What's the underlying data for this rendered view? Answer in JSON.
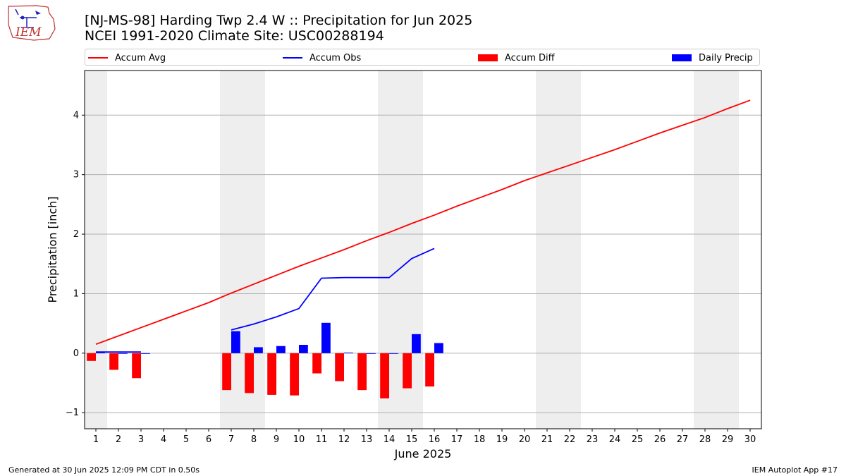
{
  "header": {
    "title_line1": "[NJ-MS-98] Harding Twp 2.4 W :: Precipitation for Jun 2025",
    "title_line2": "NCEI 1991-2020 Climate Site: USC00288194",
    "logo_text": "IEM"
  },
  "footer": {
    "generated": "Generated at 30 Jun 2025 12:09 PM CDT in 0.50s",
    "app": "IEM Autoplot App #17"
  },
  "chart_data": {
    "type": "bar",
    "xlabel": "June 2025",
    "ylabel": "Precipitation [inch]",
    "xlim": [
      0.5,
      30.5
    ],
    "ylim": [
      -1.27,
      4.75
    ],
    "yticks": [
      -1,
      0,
      1,
      2,
      3,
      4
    ],
    "grid": "y",
    "legend_position": "top",
    "weekend_shading": [
      [
        0.5,
        1.5
      ],
      [
        6.5,
        8.5
      ],
      [
        13.5,
        15.5
      ],
      [
        20.5,
        22.5
      ],
      [
        27.5,
        29.5
      ]
    ],
    "days": [
      1,
      2,
      3,
      4,
      5,
      6,
      7,
      8,
      9,
      10,
      11,
      12,
      13,
      14,
      15,
      16,
      17,
      18,
      19,
      20,
      21,
      22,
      23,
      24,
      25,
      26,
      27,
      28,
      29,
      30
    ],
    "series": [
      {
        "name": "Accum Avg",
        "kind": "line",
        "color": "#ff0000",
        "x": [
          1,
          2,
          3,
          4,
          5,
          6,
          7,
          8,
          9,
          10,
          11,
          12,
          13,
          14,
          15,
          16,
          17,
          18,
          19,
          20,
          21,
          22,
          23,
          24,
          25,
          26,
          27,
          28,
          29,
          30
        ],
        "values": [
          0.15,
          0.29,
          0.43,
          0.57,
          0.71,
          0.85,
          1.01,
          1.16,
          1.31,
          1.46,
          1.6,
          1.74,
          1.89,
          2.03,
          2.18,
          2.32,
          2.47,
          2.61,
          2.75,
          2.9,
          3.03,
          3.16,
          3.29,
          3.42,
          3.56,
          3.7,
          3.83,
          3.96,
          4.11,
          4.25
        ]
      },
      {
        "name": "Accum Obs",
        "kind": "line",
        "color": "#0000ff",
        "segments": [
          {
            "x": [
              1,
              2,
              3
            ],
            "values": [
              0.02,
              0.02,
              0.02
            ]
          },
          {
            "x": [
              7,
              8,
              9,
              10,
              11,
              12,
              13,
              14,
              15,
              16
            ],
            "values": [
              0.39,
              0.49,
              0.61,
              0.75,
              1.26,
              1.27,
              1.27,
              1.27,
              1.59,
              1.76
            ]
          }
        ]
      },
      {
        "name": "Accum Diff",
        "kind": "bar",
        "color": "#ff0000",
        "x": [
          1,
          2,
          3,
          7,
          8,
          9,
          10,
          11,
          12,
          13,
          14,
          15,
          16
        ],
        "values": [
          -0.13,
          -0.28,
          -0.42,
          -0.62,
          -0.67,
          -0.7,
          -0.71,
          -0.34,
          -0.47,
          -0.62,
          -0.76,
          -0.59,
          -0.56
        ]
      },
      {
        "name": "Daily Precip",
        "kind": "bar",
        "color": "#0000ff",
        "x": [
          1,
          2,
          3,
          7,
          8,
          9,
          10,
          11,
          12,
          13,
          14,
          15,
          16
        ],
        "values": [
          0.02,
          0,
          0,
          0.37,
          0.1,
          0.12,
          0.14,
          0.51,
          0.01,
          0,
          0,
          0.32,
          0.17
        ]
      }
    ]
  }
}
